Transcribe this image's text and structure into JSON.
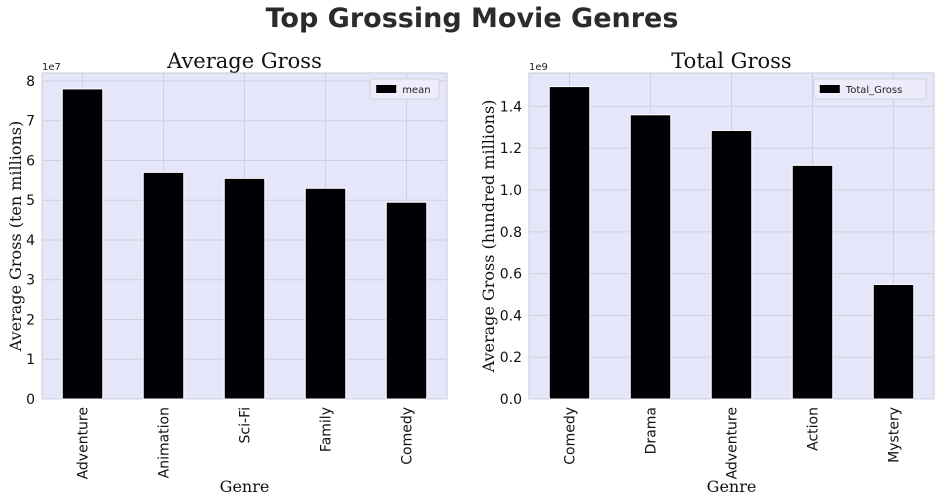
{
  "figure_title": "Top Grossing Movie Genres",
  "chart_data": [
    {
      "type": "bar",
      "title": "Average Gross",
      "xlabel": "Genre",
      "ylabel": "Average Gross (ten millions)",
      "offset_text": "1e7",
      "categories": [
        "Adventure",
        "Animation",
        "Sci-Fi",
        "Family",
        "Comedy"
      ],
      "series": [
        {
          "name": "mean",
          "values": [
            78000000,
            57000000,
            55500000,
            53000000,
            49500000
          ]
        }
      ],
      "ylim": [
        0,
        82000000
      ],
      "yticks": [
        0,
        10000000,
        20000000,
        30000000,
        40000000,
        50000000,
        60000000,
        70000000,
        80000000
      ],
      "ytick_labels": [
        "0",
        "1",
        "2",
        "3",
        "4",
        "5",
        "6",
        "7",
        "8"
      ],
      "grid": true,
      "legend_position": "top-right",
      "bar_color": "#020005",
      "background": "#e6e6fa"
    },
    {
      "type": "bar",
      "title": "Total Gross",
      "xlabel": "Genre",
      "ylabel": "Average Gross (hundred millions)",
      "offset_text": "1e9",
      "categories": [
        "Comedy",
        "Drama",
        "Adventure",
        "Action",
        "Mystery"
      ],
      "series": [
        {
          "name": "Total_Gross",
          "values": [
            1495000000,
            1360000000,
            1285000000,
            1118000000,
            548000000
          ]
        }
      ],
      "ylim": [
        0,
        1560000000
      ],
      "yticks": [
        0,
        200000000,
        400000000,
        600000000,
        800000000,
        1000000000,
        1200000000,
        1400000000
      ],
      "ytick_labels": [
        "0.0",
        "0.2",
        "0.4",
        "0.6",
        "0.8",
        "1.0",
        "1.2",
        "1.4"
      ],
      "grid": true,
      "legend_position": "top-right",
      "bar_color": "#020005",
      "background": "#e6e6fa"
    }
  ]
}
